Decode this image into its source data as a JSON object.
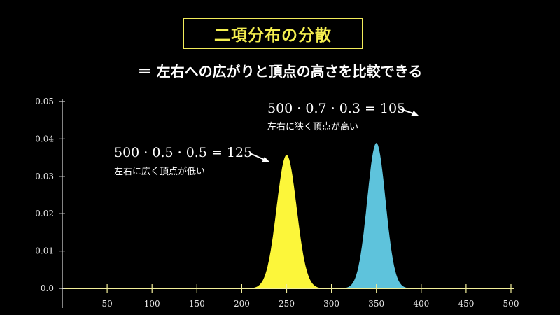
{
  "header": {
    "title": "二項分布の分散",
    "subtitle": "＝ 左右への広がりと頂点の高さを比較できる"
  },
  "colors": {
    "background": "#000000",
    "axis": "#f2ee9a",
    "series_a": "#fcf63a",
    "series_b": "#5ec3dc",
    "title": "#f4ee4f"
  },
  "annotations": [
    {
      "formula": "500 · 0.5 · 0.5 = 125",
      "note": "左右に広く頂点が低い"
    },
    {
      "formula": "500 · 0.7 · 0.3 = 105",
      "note": "左右に狭く頂点が高い"
    }
  ],
  "chart_data": {
    "type": "area",
    "title": "",
    "xlabel": "",
    "ylabel": "",
    "xlim": [
      0,
      500
    ],
    "ylim": [
      0,
      0.05
    ],
    "x_ticks": [
      "50",
      "100",
      "150",
      "200",
      "250",
      "300",
      "350",
      "400",
      "450",
      "500"
    ],
    "y_ticks": [
      "0.0",
      "0.01",
      "0.02",
      "0.03",
      "0.04",
      "0.05"
    ],
    "grid": false,
    "series": [
      {
        "distribution": "binomial",
        "n": 500,
        "p": 0.5,
        "mean": 250,
        "variance": 125,
        "peak": 0.0357
      },
      {
        "distribution": "binomial",
        "n": 500,
        "p": 0.7,
        "mean": 350,
        "variance": 105,
        "peak": 0.0389
      }
    ]
  }
}
